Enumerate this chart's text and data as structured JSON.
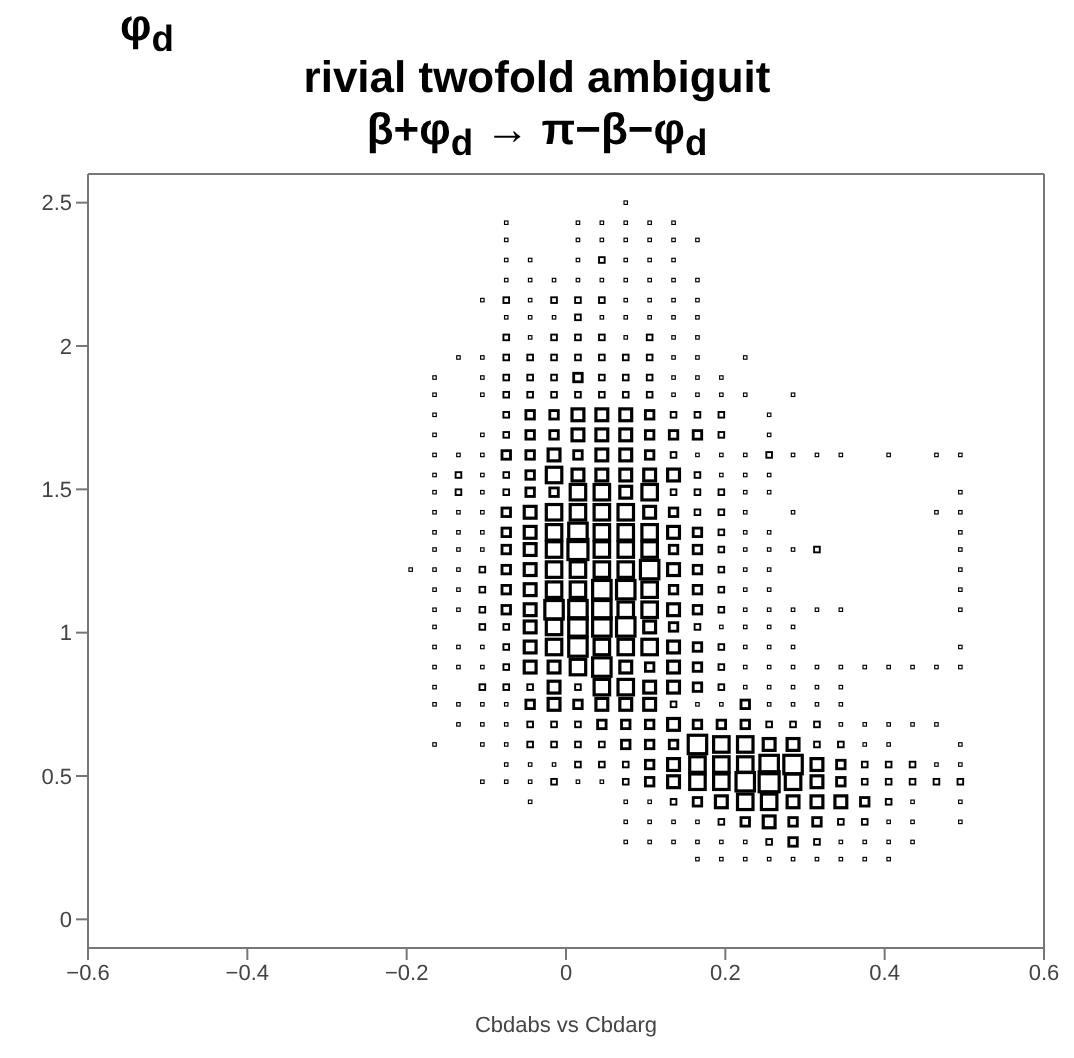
{
  "chart_data": {
    "type": "bubble",
    "relative": false,
    "marker": "square",
    "title": "rivial twofold ambiguit",
    "subtitle": "β+φ$_{d}$ → π−β−φ$_{d}$",
    "annotations": [
      "φ$_{d}$"
    ],
    "xlabel": "Cbdabs vs Cbdarg",
    "xlim": [
      -0.6,
      0.6
    ],
    "xticks": [
      {
        "value": -0.6,
        "label": "−0.6"
      },
      {
        "value": -0.4,
        "label": "−0.4"
      },
      {
        "value": -0.2,
        "label": "−0.2"
      },
      0,
      0.2,
      0.4,
      0.6
    ],
    "ylim": [
      -0.1,
      2.6
    ],
    "yticks": [
      0,
      0.5,
      1,
      1.5,
      2,
      2.5
    ],
    "series": [
      {
        "color": "#000000",
        "x": [
          0.075
        ],
        "values": [
          2.5
        ],
        "sizes": [
          0.03
        ]
      },
      {
        "color": "#000000",
        "x": [
          -0.075,
          0.015,
          0.045,
          0.075,
          0.105,
          0.135
        ],
        "values": [
          2.43,
          2.43,
          2.43,
          2.43,
          2.43,
          2.43
        ],
        "sizes": [
          0.03,
          0.03,
          0.03,
          0.03,
          0.03,
          0.03
        ]
      },
      {
        "color": "#000000",
        "x": [
          -0.075,
          0.015,
          0.045,
          0.075,
          0.105,
          0.135,
          0.165
        ],
        "values": [
          2.37,
          2.37,
          2.37,
          2.37,
          2.37,
          2.37,
          2.37
        ],
        "sizes": [
          0.03,
          0.03,
          0.03,
          0.03,
          0.03,
          0.03,
          0.03
        ]
      },
      {
        "color": "#000000",
        "x": [
          -0.075,
          -0.045,
          0.015,
          0.045,
          0.075,
          0.105,
          0.135
        ],
        "values": [
          2.3,
          2.3,
          2.3,
          2.3,
          2.3,
          2.3,
          2.3
        ],
        "sizes": [
          0.03,
          0.03,
          0.03,
          0.08,
          0.03,
          0.03,
          0.03
        ]
      },
      {
        "color": "#000000",
        "x": [
          -0.075,
          -0.045,
          -0.015,
          0.015,
          0.045,
          0.075,
          0.105,
          0.135,
          0.165
        ],
        "values": [
          2.23,
          2.23,
          2.23,
          2.23,
          2.23,
          2.23,
          2.23,
          2.23,
          2.23
        ],
        "sizes": [
          0.03,
          0.03,
          0.03,
          0.03,
          0.03,
          0.03,
          0.03,
          0.03,
          0.03
        ]
      },
      {
        "color": "#000000",
        "x": [
          -0.105,
          -0.075,
          -0.045,
          -0.015,
          0.015,
          0.045,
          0.075,
          0.105,
          0.135,
          0.165
        ],
        "values": [
          2.16,
          2.16,
          2.16,
          2.16,
          2.16,
          2.16,
          2.16,
          2.16,
          2.16,
          2.16
        ],
        "sizes": [
          0.03,
          0.08,
          0.03,
          0.08,
          0.08,
          0.08,
          0.03,
          0.03,
          0.03,
          0.03
        ]
      },
      {
        "color": "#000000",
        "x": [
          -0.075,
          -0.045,
          -0.015,
          0.015,
          0.045,
          0.075,
          0.105,
          0.135,
          0.165
        ],
        "values": [
          2.1,
          2.1,
          2.1,
          2.1,
          2.1,
          2.1,
          2.1,
          2.1,
          2.1
        ],
        "sizes": [
          0.03,
          0.03,
          0.03,
          0.08,
          0.03,
          0.03,
          0.03,
          0.03,
          0.03
        ]
      },
      {
        "color": "#000000",
        "x": [
          -0.075,
          -0.045,
          -0.015,
          0.015,
          0.045,
          0.075,
          0.105,
          0.135,
          0.165
        ],
        "values": [
          2.03,
          2.03,
          2.03,
          2.03,
          2.03,
          2.03,
          2.03,
          2.03,
          2.03
        ],
        "sizes": [
          0.08,
          0.03,
          0.08,
          0.08,
          0.08,
          0.03,
          0.08,
          0.03,
          0.03
        ]
      },
      {
        "color": "#000000",
        "x": [
          -0.135,
          -0.105,
          -0.075,
          -0.045,
          -0.015,
          0.015,
          0.045,
          0.075,
          0.105,
          0.135,
          0.165,
          0.225
        ],
        "values": [
          1.96,
          1.96,
          1.96,
          1.96,
          1.96,
          1.96,
          1.96,
          1.96,
          1.96,
          1.96,
          1.96,
          1.96
        ],
        "sizes": [
          0.03,
          0.03,
          0.08,
          0.08,
          0.08,
          0.08,
          0.08,
          0.08,
          0.08,
          0.03,
          0.03,
          0.03
        ]
      },
      {
        "color": "#000000",
        "x": [
          -0.165,
          -0.105,
          -0.075,
          -0.045,
          -0.015,
          0.015,
          0.045,
          0.075,
          0.105,
          0.135,
          0.165,
          0.195
        ],
        "values": [
          1.89,
          1.89,
          1.89,
          1.89,
          1.89,
          1.89,
          1.89,
          1.89,
          1.89,
          1.89,
          1.89,
          1.89
        ],
        "sizes": [
          0.03,
          0.03,
          0.08,
          0.08,
          0.08,
          0.18,
          0.08,
          0.08,
          0.08,
          0.03,
          0.03,
          0.03
        ]
      },
      {
        "color": "#000000",
        "x": [
          -0.165,
          -0.105,
          -0.075,
          -0.045,
          -0.015,
          0.015,
          0.045,
          0.075,
          0.105,
          0.135,
          0.165,
          0.195,
          0.225,
          0.285
        ],
        "values": [
          1.83,
          1.83,
          1.83,
          1.83,
          1.83,
          1.83,
          1.83,
          1.83,
          1.83,
          1.83,
          1.83,
          1.83,
          1.83,
          1.83
        ],
        "sizes": [
          0.03,
          0.03,
          0.08,
          0.08,
          0.08,
          0.08,
          0.08,
          0.08,
          0.08,
          0.03,
          0.03,
          0.03,
          0.03,
          0.03
        ]
      },
      {
        "color": "#000000",
        "x": [
          -0.165,
          -0.075,
          -0.045,
          -0.015,
          0.015,
          0.045,
          0.075,
          0.105,
          0.135,
          0.165,
          0.195,
          0.255
        ],
        "values": [
          1.76,
          1.76,
          1.76,
          1.76,
          1.76,
          1.76,
          1.76,
          1.76,
          1.76,
          1.76,
          1.76,
          1.76
        ],
        "sizes": [
          0.03,
          0.08,
          0.18,
          0.18,
          0.35,
          0.35,
          0.35,
          0.18,
          0.08,
          0.08,
          0.08,
          0.03
        ]
      },
      {
        "color": "#000000",
        "x": [
          -0.165,
          -0.105,
          -0.075,
          -0.045,
          -0.015,
          0.015,
          0.045,
          0.075,
          0.105,
          0.135,
          0.165,
          0.195,
          0.255
        ],
        "values": [
          1.69,
          1.69,
          1.69,
          1.69,
          1.69,
          1.69,
          1.69,
          1.69,
          1.69,
          1.69,
          1.69,
          1.69,
          1.69
        ],
        "sizes": [
          0.03,
          0.03,
          0.08,
          0.18,
          0.18,
          0.35,
          0.35,
          0.35,
          0.18,
          0.18,
          0.18,
          0.08,
          0.03
        ]
      },
      {
        "color": "#000000",
        "x": [
          -0.165,
          -0.135,
          -0.105,
          -0.075,
          -0.045,
          -0.015,
          0.015,
          0.045,
          0.075,
          0.105,
          0.135,
          0.165,
          0.195,
          0.225,
          0.255,
          0.285,
          0.315,
          0.345,
          0.405,
          0.465,
          0.495
        ],
        "values": [
          1.62,
          1.62,
          1.62,
          1.62,
          1.62,
          1.62,
          1.62,
          1.62,
          1.62,
          1.62,
          1.62,
          1.62,
          1.62,
          1.62,
          1.62,
          1.62,
          1.62,
          1.62,
          1.62,
          1.62,
          1.62
        ],
        "sizes": [
          0.03,
          0.03,
          0.03,
          0.18,
          0.18,
          0.35,
          0.18,
          0.35,
          0.35,
          0.18,
          0.08,
          0.03,
          0.03,
          0.03,
          0.08,
          0.03,
          0.03,
          0.03,
          0.03,
          0.03,
          0.03
        ]
      },
      {
        "color": "#000000",
        "x": [
          -0.165,
          -0.135,
          -0.105,
          -0.075,
          -0.045,
          -0.015,
          0.015,
          0.045,
          0.075,
          0.105,
          0.135,
          0.165,
          0.195,
          0.225,
          0.255
        ],
        "values": [
          1.55,
          1.55,
          1.55,
          1.55,
          1.55,
          1.55,
          1.55,
          1.55,
          1.55,
          1.55,
          1.55,
          1.55,
          1.55,
          1.55,
          1.55
        ],
        "sizes": [
          0.03,
          0.08,
          0.03,
          0.08,
          0.18,
          0.6,
          0.35,
          0.35,
          0.35,
          0.35,
          0.35,
          0.08,
          0.03,
          0.03,
          0.03
        ]
      },
      {
        "color": "#000000",
        "x": [
          -0.165,
          -0.135,
          -0.105,
          -0.075,
          -0.045,
          -0.015,
          0.015,
          0.045,
          0.075,
          0.105,
          0.135,
          0.165,
          0.195,
          0.225,
          0.255,
          0.495
        ],
        "values": [
          1.49,
          1.49,
          1.49,
          1.49,
          1.49,
          1.49,
          1.49,
          1.49,
          1.49,
          1.49,
          1.49,
          1.49,
          1.49,
          1.49,
          1.49,
          1.49
        ],
        "sizes": [
          0.03,
          0.08,
          0.03,
          0.08,
          0.18,
          0.18,
          0.6,
          0.6,
          0.35,
          0.6,
          0.08,
          0.08,
          0.08,
          0.03,
          0.03,
          0.03
        ]
      },
      {
        "color": "#000000",
        "x": [
          -0.165,
          -0.135,
          -0.105,
          -0.075,
          -0.045,
          -0.015,
          0.015,
          0.045,
          0.075,
          0.105,
          0.135,
          0.165,
          0.195,
          0.225,
          0.285,
          0.465,
          0.495
        ],
        "values": [
          1.42,
          1.42,
          1.42,
          1.42,
          1.42,
          1.42,
          1.42,
          1.42,
          1.42,
          1.42,
          1.42,
          1.42,
          1.42,
          1.42,
          1.42,
          1.42,
          1.42
        ],
        "sizes": [
          0.03,
          0.03,
          0.03,
          0.18,
          0.35,
          0.6,
          0.6,
          0.6,
          0.6,
          0.35,
          0.18,
          0.08,
          0.08,
          0.03,
          0.03,
          0.03,
          0.03
        ]
      },
      {
        "color": "#000000",
        "x": [
          -0.165,
          -0.135,
          -0.105,
          -0.075,
          -0.045,
          -0.015,
          0.015,
          0.045,
          0.075,
          0.105,
          0.135,
          0.165,
          0.195,
          0.225,
          0.255,
          0.495
        ],
        "values": [
          1.35,
          1.35,
          1.35,
          1.35,
          1.35,
          1.35,
          1.35,
          1.35,
          1.35,
          1.35,
          1.35,
          1.35,
          1.35,
          1.35,
          1.35,
          1.35
        ],
        "sizes": [
          0.03,
          0.03,
          0.03,
          0.18,
          0.35,
          0.6,
          0.85,
          0.6,
          0.6,
          0.6,
          0.35,
          0.18,
          0.08,
          0.03,
          0.03,
          0.03
        ]
      },
      {
        "color": "#000000",
        "x": [
          -0.165,
          -0.135,
          -0.105,
          -0.075,
          -0.045,
          -0.015,
          0.015,
          0.045,
          0.075,
          0.105,
          0.135,
          0.165,
          0.195,
          0.225,
          0.255,
          0.285,
          0.315,
          0.495
        ],
        "values": [
          1.29,
          1.29,
          1.29,
          1.29,
          1.29,
          1.29,
          1.29,
          1.29,
          1.29,
          1.29,
          1.29,
          1.29,
          1.29,
          1.29,
          1.29,
          1.29,
          1.29,
          1.29
        ],
        "sizes": [
          0.03,
          0.03,
          0.03,
          0.18,
          0.35,
          0.6,
          1,
          0.6,
          0.6,
          0.6,
          0.18,
          0.18,
          0.08,
          0.03,
          0.03,
          0.03,
          0.08,
          0.03
        ]
      },
      {
        "color": "#000000",
        "x": [
          -0.195,
          -0.165,
          -0.135,
          -0.105,
          -0.075,
          -0.045,
          -0.015,
          0.015,
          0.045,
          0.075,
          0.105,
          0.135,
          0.165,
          0.195,
          0.225,
          0.255,
          0.495
        ],
        "values": [
          1.22,
          1.22,
          1.22,
          1.22,
          1.22,
          1.22,
          1.22,
          1.22,
          1.22,
          1.22,
          1.22,
          1.22,
          1.22,
          1.22,
          1.22,
          1.22,
          1.22
        ],
        "sizes": [
          0.03,
          0.03,
          0.03,
          0.08,
          0.18,
          0.35,
          0.6,
          0.6,
          0.6,
          0.6,
          0.85,
          0.35,
          0.18,
          0.08,
          0.03,
          0.03,
          0.03
        ]
      },
      {
        "color": "#000000",
        "x": [
          -0.165,
          -0.135,
          -0.105,
          -0.075,
          -0.045,
          -0.015,
          0.015,
          0.045,
          0.075,
          0.105,
          0.135,
          0.165,
          0.195,
          0.225,
          0.255,
          0.495
        ],
        "values": [
          1.15,
          1.15,
          1.15,
          1.15,
          1.15,
          1.15,
          1.15,
          1.15,
          1.15,
          1.15,
          1.15,
          1.15,
          1.15,
          1.15,
          1.15,
          1.15
        ],
        "sizes": [
          0.03,
          0.03,
          0.08,
          0.18,
          0.35,
          0.6,
          0.6,
          0.85,
          0.85,
          0.6,
          0.18,
          0.18,
          0.08,
          0.03,
          0.03,
          0.03
        ]
      },
      {
        "color": "#000000",
        "x": [
          -0.165,
          -0.135,
          -0.105,
          -0.075,
          -0.045,
          -0.015,
          0.015,
          0.045,
          0.075,
          0.105,
          0.135,
          0.165,
          0.195,
          0.225,
          0.255,
          0.285,
          0.315,
          0.345,
          0.495
        ],
        "values": [
          1.08,
          1.08,
          1.08,
          1.08,
          1.08,
          1.08,
          1.08,
          1.08,
          1.08,
          1.08,
          1.08,
          1.08,
          1.08,
          1.08,
          1.08,
          1.08,
          1.08,
          1.08,
          1.08
        ],
        "sizes": [
          0.03,
          0.03,
          0.08,
          0.18,
          0.35,
          0.85,
          0.85,
          0.85,
          0.6,
          0.6,
          0.35,
          0.18,
          0.08,
          0.03,
          0.03,
          0.03,
          0.03,
          0.03,
          0.03
        ]
      },
      {
        "color": "#000000",
        "x": [
          -0.165,
          -0.105,
          -0.075,
          -0.045,
          -0.015,
          0.015,
          0.045,
          0.075,
          0.105,
          0.135,
          0.165,
          0.195,
          0.225,
          0.255,
          0.285
        ],
        "values": [
          1.02,
          1.02,
          1.02,
          1.02,
          1.02,
          1.02,
          1.02,
          1.02,
          1.02,
          1.02,
          1.02,
          1.02,
          1.02,
          1.02,
          1.02
        ],
        "sizes": [
          0.03,
          0.08,
          0.08,
          0.35,
          0.6,
          0.85,
          0.85,
          0.85,
          0.35,
          0.18,
          0.08,
          0.03,
          0.03,
          0.03,
          0.03
        ]
      },
      {
        "color": "#000000",
        "x": [
          -0.165,
          -0.135,
          -0.105,
          -0.075,
          -0.045,
          -0.015,
          0.015,
          0.045,
          0.075,
          0.105,
          0.135,
          0.165,
          0.195,
          0.225,
          0.255,
          0.285,
          0.495
        ],
        "values": [
          0.95,
          0.95,
          0.95,
          0.95,
          0.95,
          0.95,
          0.95,
          0.95,
          0.95,
          0.95,
          0.95,
          0.95,
          0.95,
          0.95,
          0.95,
          0.95,
          0.95
        ],
        "sizes": [
          0.03,
          0.03,
          0.03,
          0.08,
          0.35,
          0.6,
          0.85,
          0.6,
          0.6,
          0.6,
          0.35,
          0.18,
          0.08,
          0.03,
          0.03,
          0.03,
          0.03
        ]
      },
      {
        "color": "#000000",
        "x": [
          -0.165,
          -0.135,
          -0.105,
          -0.075,
          -0.045,
          -0.015,
          0.015,
          0.045,
          0.075,
          0.105,
          0.135,
          0.165,
          0.195,
          0.225,
          0.255,
          0.285,
          0.315,
          0.345,
          0.375,
          0.405,
          0.435,
          0.465,
          0.495
        ],
        "values": [
          0.88,
          0.88,
          0.88,
          0.88,
          0.88,
          0.88,
          0.88,
          0.88,
          0.88,
          0.88,
          0.88,
          0.88,
          0.88,
          0.88,
          0.88,
          0.88,
          0.88,
          0.88,
          0.88,
          0.88,
          0.88,
          0.88,
          0.88
        ],
        "sizes": [
          0.03,
          0.03,
          0.03,
          0.08,
          0.35,
          0.35,
          0.6,
          0.85,
          0.35,
          0.18,
          0.35,
          0.18,
          0.08,
          0.03,
          0.03,
          0.03,
          0.03,
          0.03,
          0.03,
          0.03,
          0.03,
          0.03,
          0.03
        ]
      },
      {
        "color": "#000000",
        "x": [
          -0.165,
          -0.105,
          -0.075,
          -0.045,
          -0.015,
          0.015,
          0.045,
          0.075,
          0.105,
          0.135,
          0.165,
          0.195,
          0.225,
          0.255,
          0.285,
          0.315,
          0.345
        ],
        "values": [
          0.81,
          0.81,
          0.81,
          0.81,
          0.81,
          0.81,
          0.81,
          0.81,
          0.81,
          0.81,
          0.81,
          0.81,
          0.81,
          0.81,
          0.81,
          0.81,
          0.81
        ],
        "sizes": [
          0.03,
          0.08,
          0.08,
          0.08,
          0.35,
          0.08,
          0.6,
          0.6,
          0.35,
          0.35,
          0.18,
          0.08,
          0.03,
          0.03,
          0.03,
          0.03,
          0.03
        ]
      },
      {
        "color": "#000000",
        "x": [
          -0.165,
          -0.135,
          -0.105,
          -0.075,
          -0.045,
          -0.015,
          0.015,
          0.045,
          0.075,
          0.105,
          0.135,
          0.165,
          0.195,
          0.225,
          0.255,
          0.285,
          0.315,
          0.345
        ],
        "values": [
          0.75,
          0.75,
          0.75,
          0.75,
          0.75,
          0.75,
          0.75,
          0.75,
          0.75,
          0.75,
          0.75,
          0.75,
          0.75,
          0.75,
          0.75,
          0.75,
          0.75,
          0.75
        ],
        "sizes": [
          0.03,
          0.03,
          0.03,
          0.03,
          0.18,
          0.35,
          0.18,
          0.35,
          0.35,
          0.35,
          0.08,
          0.03,
          0.03,
          0.18,
          0.03,
          0.03,
          0.03,
          0.03
        ]
      },
      {
        "color": "#000000",
        "x": [
          -0.135,
          -0.105,
          -0.075,
          -0.045,
          -0.015,
          0.015,
          0.045,
          0.075,
          0.105,
          0.135,
          0.165,
          0.195,
          0.225,
          0.255,
          0.285,
          0.315,
          0.345,
          0.375,
          0.405,
          0.435,
          0.465
        ],
        "values": [
          0.68,
          0.68,
          0.68,
          0.68,
          0.68,
          0.68,
          0.68,
          0.68,
          0.68,
          0.68,
          0.68,
          0.68,
          0.68,
          0.68,
          0.68,
          0.68,
          0.68,
          0.68,
          0.68,
          0.68,
          0.68
        ],
        "sizes": [
          0.03,
          0.03,
          0.03,
          0.08,
          0.08,
          0.08,
          0.18,
          0.18,
          0.18,
          0.35,
          0.18,
          0.18,
          0.18,
          0.08,
          0.08,
          0.08,
          0.03,
          0.03,
          0.03,
          0.03,
          0.03
        ]
      },
      {
        "color": "#000000",
        "x": [
          -0.165,
          -0.105,
          -0.075,
          -0.045,
          -0.015,
          0.015,
          0.045,
          0.075,
          0.105,
          0.135,
          0.165,
          0.195,
          0.225,
          0.255,
          0.285,
          0.315,
          0.345,
          0.375,
          0.405,
          0.495
        ],
        "values": [
          0.61,
          0.61,
          0.61,
          0.61,
          0.61,
          0.61,
          0.61,
          0.61,
          0.61,
          0.61,
          0.61,
          0.61,
          0.61,
          0.61,
          0.61,
          0.61,
          0.61,
          0.61,
          0.61,
          0.61
        ],
        "sizes": [
          0.03,
          0.03,
          0.03,
          0.08,
          0.08,
          0.08,
          0.08,
          0.18,
          0.18,
          0.18,
          0.85,
          0.6,
          0.6,
          0.35,
          0.35,
          0.08,
          0.08,
          0.03,
          0.03,
          0.03
        ]
      },
      {
        "color": "#000000",
        "x": [
          -0.075,
          -0.045,
          -0.015,
          0.015,
          0.045,
          0.075,
          0.105,
          0.135,
          0.165,
          0.195,
          0.225,
          0.255,
          0.285,
          0.315,
          0.345,
          0.375,
          0.405,
          0.435,
          0.465,
          0.495
        ],
        "values": [
          0.54,
          0.54,
          0.54,
          0.54,
          0.54,
          0.54,
          0.54,
          0.54,
          0.54,
          0.54,
          0.54,
          0.54,
          0.54,
          0.54,
          0.54,
          0.54,
          0.54,
          0.54,
          0.54,
          0.54
        ],
        "sizes": [
          0.03,
          0.03,
          0.03,
          0.08,
          0.08,
          0.08,
          0.18,
          0.35,
          0.6,
          0.6,
          0.6,
          0.85,
          0.85,
          0.35,
          0.18,
          0.08,
          0.08,
          0.08,
          0.03,
          0.03
        ]
      },
      {
        "color": "#000000",
        "x": [
          -0.105,
          -0.075,
          -0.045,
          -0.015,
          0.015,
          0.045,
          0.075,
          0.105,
          0.135,
          0.165,
          0.195,
          0.225,
          0.255,
          0.285,
          0.315,
          0.345,
          0.375,
          0.405,
          0.435,
          0.465,
          0.495
        ],
        "values": [
          0.48,
          0.48,
          0.48,
          0.48,
          0.48,
          0.48,
          0.48,
          0.48,
          0.48,
          0.48,
          0.48,
          0.48,
          0.48,
          0.48,
          0.48,
          0.48,
          0.48,
          0.48,
          0.48,
          0.48,
          0.48
        ],
        "sizes": [
          0.03,
          0.03,
          0.03,
          0.08,
          0.03,
          0.03,
          0.08,
          0.18,
          0.35,
          0.6,
          0.6,
          0.85,
          1,
          0.6,
          0.35,
          0.18,
          0.08,
          0.08,
          0.08,
          0.08,
          0.08
        ]
      },
      {
        "color": "#000000",
        "x": [
          -0.045,
          0.075,
          0.105,
          0.135,
          0.165,
          0.195,
          0.225,
          0.255,
          0.285,
          0.315,
          0.345,
          0.375,
          0.405,
          0.435,
          0.495
        ],
        "values": [
          0.41,
          0.41,
          0.41,
          0.41,
          0.41,
          0.41,
          0.41,
          0.41,
          0.41,
          0.41,
          0.41,
          0.41,
          0.41,
          0.41,
          0.41
        ],
        "sizes": [
          0.03,
          0.03,
          0.03,
          0.08,
          0.18,
          0.35,
          0.6,
          0.6,
          0.35,
          0.35,
          0.35,
          0.18,
          0.08,
          0.03,
          0.03
        ]
      },
      {
        "color": "#000000",
        "x": [
          0.075,
          0.105,
          0.135,
          0.165,
          0.195,
          0.225,
          0.255,
          0.285,
          0.315,
          0.345,
          0.375,
          0.405,
          0.435,
          0.495
        ],
        "values": [
          0.34,
          0.34,
          0.34,
          0.34,
          0.34,
          0.34,
          0.34,
          0.34,
          0.34,
          0.34,
          0.34,
          0.34,
          0.34,
          0.34
        ],
        "sizes": [
          0.03,
          0.03,
          0.03,
          0.03,
          0.08,
          0.18,
          0.35,
          0.18,
          0.18,
          0.08,
          0.08,
          0.03,
          0.03,
          0.03
        ]
      },
      {
        "color": "#000000",
        "x": [
          0.075,
          0.105,
          0.135,
          0.165,
          0.195,
          0.225,
          0.255,
          0.285,
          0.315,
          0.345,
          0.375,
          0.405,
          0.435
        ],
        "values": [
          0.27,
          0.27,
          0.27,
          0.27,
          0.27,
          0.27,
          0.27,
          0.27,
          0.27,
          0.27,
          0.27,
          0.27,
          0.27
        ],
        "sizes": [
          0.03,
          0.03,
          0.03,
          0.03,
          0.03,
          0.03,
          0.08,
          0.18,
          0.08,
          0.03,
          0.03,
          0.03,
          0.03
        ]
      },
      {
        "color": "#000000",
        "x": [
          0.165,
          0.195,
          0.225,
          0.255,
          0.285,
          0.315,
          0.345,
          0.375,
          0.405
        ],
        "values": [
          0.21,
          0.21,
          0.21,
          0.21,
          0.21,
          0.21,
          0.21,
          0.21,
          0.21
        ],
        "sizes": [
          0.03,
          0.03,
          0.03,
          0.03,
          0.03,
          0.03,
          0.03,
          0.03,
          0.03
        ]
      }
    ]
  }
}
